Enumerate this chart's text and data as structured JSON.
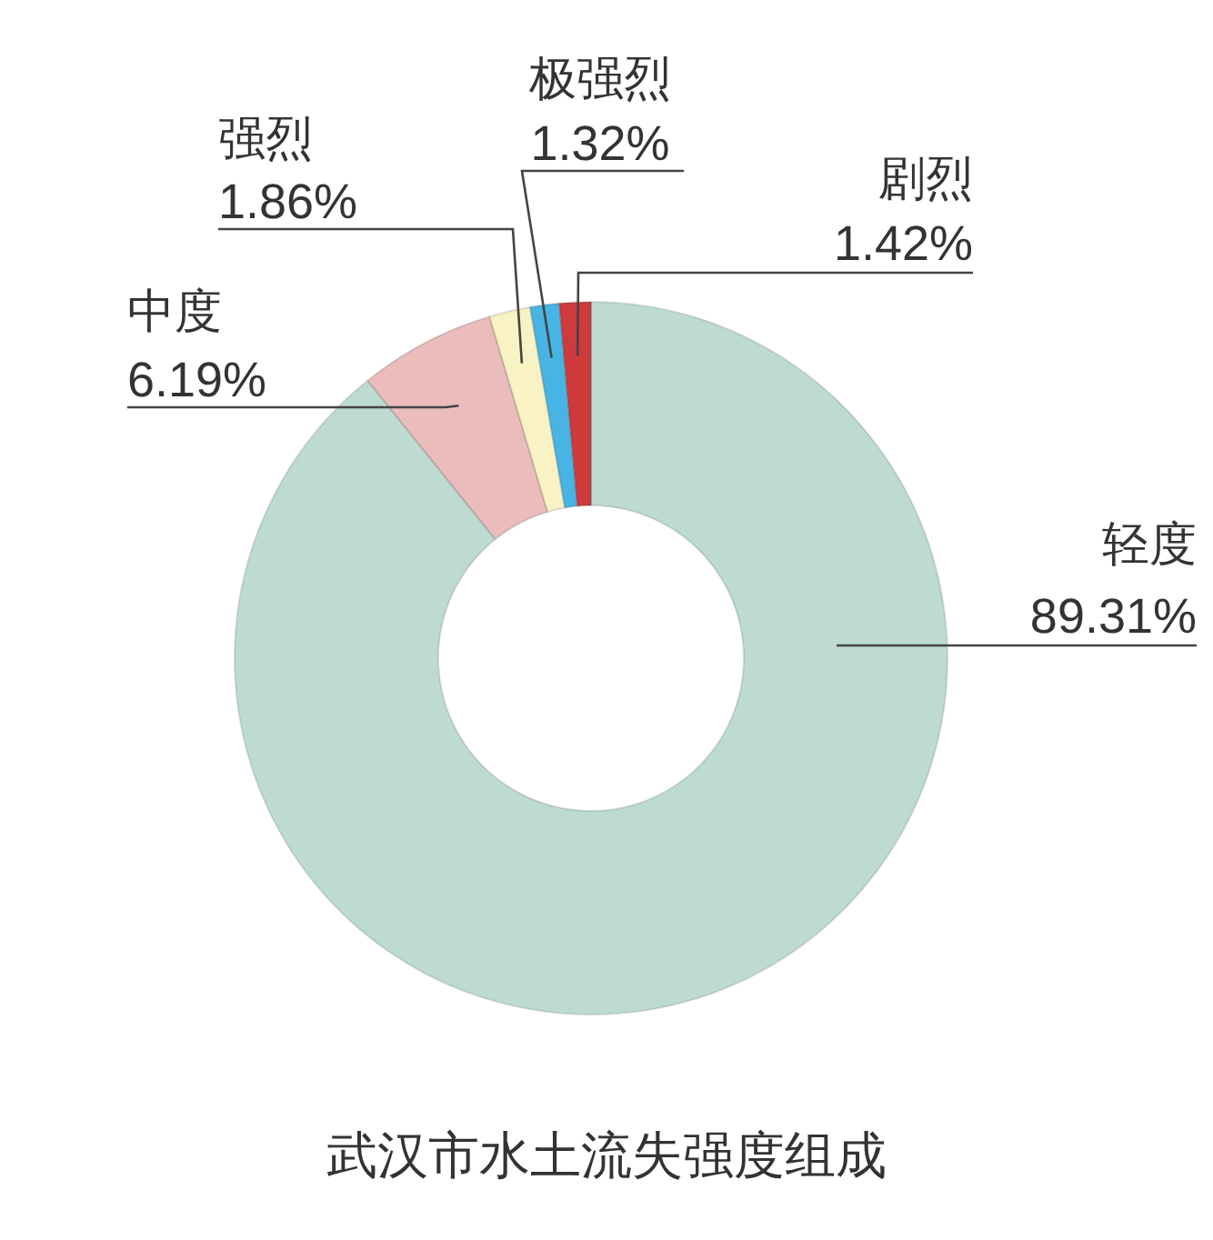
{
  "chart_data": {
    "type": "donut",
    "title": "武汉市水土流失强度组成",
    "categories": [
      "轻度",
      "中度",
      "强烈",
      "极强烈",
      "剧烈"
    ],
    "values": [
      89.31,
      6.19,
      1.86,
      1.32,
      1.42
    ],
    "value_labels": [
      "89.31%",
      "6.19%",
      "1.86%",
      "1.32%",
      "1.42%"
    ],
    "colors": [
      "#bddbd0",
      "#ebbcbc",
      "#f8f2c4",
      "#48b4e4",
      "#cf3a3c"
    ]
  }
}
